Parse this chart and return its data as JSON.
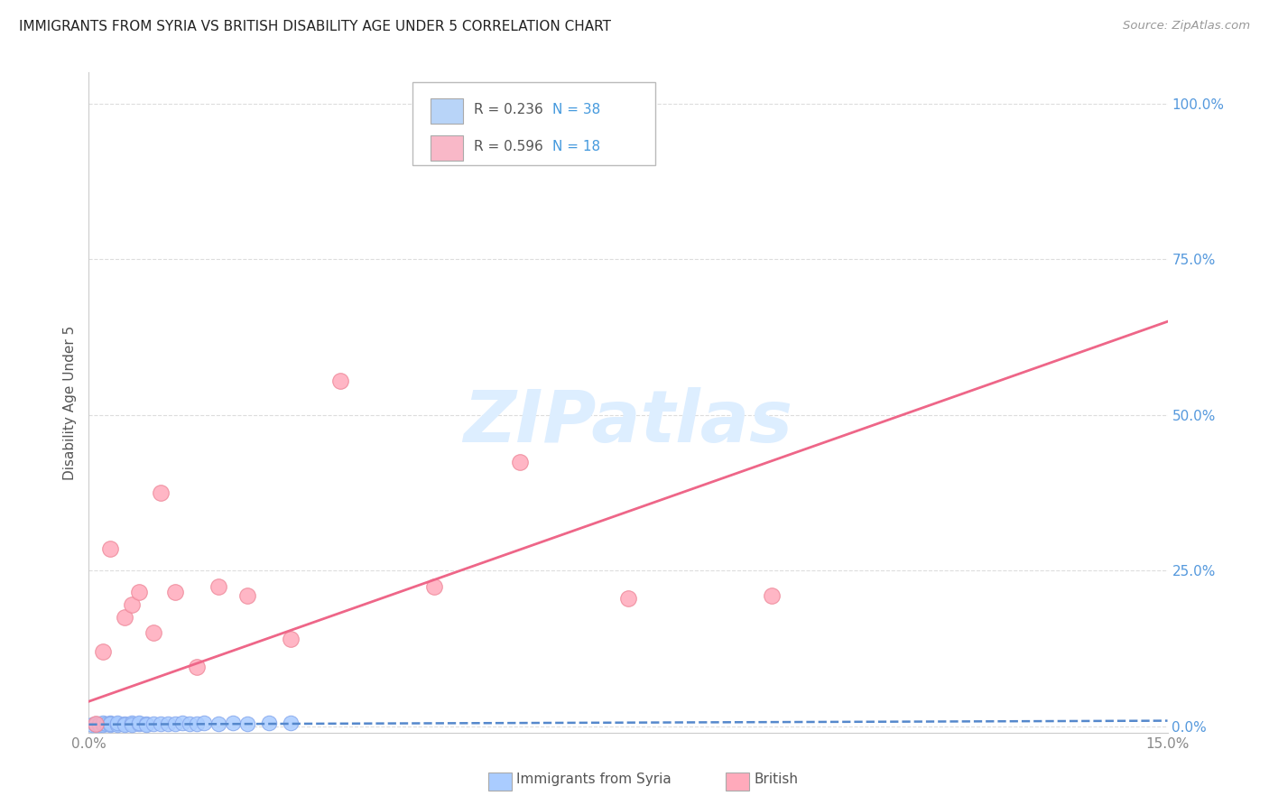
{
  "title": "IMMIGRANTS FROM SYRIA VS BRITISH DISABILITY AGE UNDER 5 CORRELATION CHART",
  "source": "Source: ZipAtlas.com",
  "ylabel": "Disability Age Under 5",
  "xlim": [
    0.0,
    0.15
  ],
  "ylim": [
    -0.01,
    1.05
  ],
  "ytick_values": [
    0.0,
    0.25,
    0.5,
    0.75,
    1.0
  ],
  "xtick_values": [
    0.0,
    0.15
  ],
  "legend_entries": [
    {
      "r_val": "R = 0.236",
      "n_val": "N = 38",
      "color": "#b8d4f8"
    },
    {
      "r_val": "R = 0.596",
      "n_val": "N = 18",
      "color": "#f9b8c8"
    }
  ],
  "syria_color": "#aaccff",
  "syria_edge_color": "#88aaee",
  "british_color": "#ffaabb",
  "british_edge_color": "#ee8899",
  "syria_line_color": "#5588cc",
  "british_line_color": "#ee6688",
  "watermark_text": "ZIPatlas",
  "watermark_color": "#ddeeff",
  "title_color": "#222222",
  "source_color": "#999999",
  "ylabel_color": "#555555",
  "grid_color": "#dddddd",
  "right_tick_color": "#5599dd",
  "bottom_tick_color": "#888888",
  "syria_x": [
    0.0005,
    0.001,
    0.001,
    0.0015,
    0.0015,
    0.002,
    0.002,
    0.002,
    0.0025,
    0.003,
    0.003,
    0.003,
    0.003,
    0.004,
    0.004,
    0.004,
    0.005,
    0.005,
    0.006,
    0.006,
    0.006,
    0.007,
    0.007,
    0.008,
    0.008,
    0.009,
    0.01,
    0.011,
    0.012,
    0.013,
    0.014,
    0.015,
    0.016,
    0.018,
    0.02,
    0.022,
    0.025,
    0.028
  ],
  "syria_y": [
    0.003,
    0.004,
    0.003,
    0.004,
    0.003,
    0.004,
    0.003,
    0.005,
    0.004,
    0.004,
    0.003,
    0.005,
    0.004,
    0.004,
    0.003,
    0.005,
    0.004,
    0.003,
    0.004,
    0.005,
    0.003,
    0.004,
    0.005,
    0.004,
    0.003,
    0.004,
    0.004,
    0.004,
    0.004,
    0.005,
    0.004,
    0.004,
    0.005,
    0.004,
    0.005,
    0.004,
    0.005,
    0.005
  ],
  "british_x": [
    0.001,
    0.002,
    0.003,
    0.005,
    0.006,
    0.007,
    0.009,
    0.01,
    0.012,
    0.015,
    0.018,
    0.022,
    0.028,
    0.035,
    0.048,
    0.06,
    0.075,
    0.095
  ],
  "british_y": [
    0.004,
    0.12,
    0.285,
    0.175,
    0.195,
    0.215,
    0.15,
    0.375,
    0.215,
    0.095,
    0.225,
    0.21,
    0.14,
    0.555,
    0.225,
    0.425,
    0.205,
    0.21
  ],
  "syria_trend_x": [
    0.0,
    0.15
  ],
  "syria_trend_y": [
    0.003,
    0.009
  ],
  "british_trend_x": [
    0.0,
    0.15
  ],
  "british_trend_y": [
    0.04,
    0.65
  ]
}
